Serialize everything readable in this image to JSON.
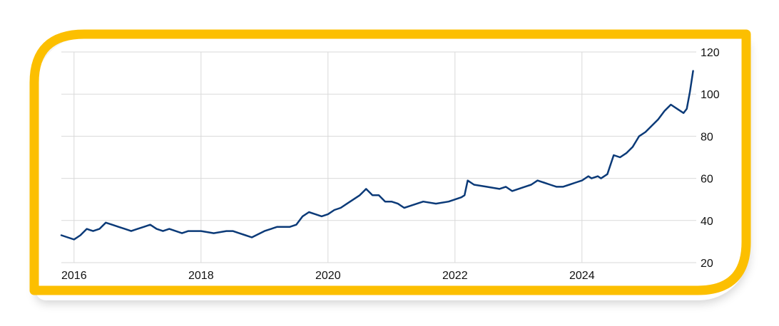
{
  "colors": {
    "frame": "#FCBF00",
    "line": "#0B3A78",
    "grid": "#D9D9D9",
    "text": "#111111",
    "background": "#FFFFFF"
  },
  "chart_data": {
    "type": "line",
    "title": "",
    "xlabel": "",
    "ylabel": "",
    "xlim": [
      2015.8,
      2025.8
    ],
    "ylim": [
      20,
      120
    ],
    "y_axis_side": "right",
    "grid": true,
    "x_ticks": [
      "2016",
      "2018",
      "2020",
      "2022",
      "2024"
    ],
    "y_ticks": [
      "20",
      "40",
      "60",
      "80",
      "100",
      "120"
    ],
    "series": [
      {
        "x": [
          2015.8,
          2015.9,
          2016.0,
          2016.1,
          2016.2,
          2016.3,
          2016.4,
          2016.5,
          2016.6,
          2016.7,
          2016.8,
          2016.9,
          2017.0,
          2017.1,
          2017.2,
          2017.3,
          2017.4,
          2017.5,
          2017.6,
          2017.7,
          2017.8,
          2017.9,
          2018.0,
          2018.2,
          2018.4,
          2018.5,
          2018.6,
          2018.7,
          2018.8,
          2019.0,
          2019.2,
          2019.3,
          2019.4,
          2019.5,
          2019.6,
          2019.7,
          2019.8,
          2019.9,
          2020.0,
          2020.1,
          2020.2,
          2020.3,
          2020.4,
          2020.5,
          2020.6,
          2020.7,
          2020.8,
          2020.9,
          2021.0,
          2021.1,
          2021.2,
          2021.3,
          2021.5,
          2021.7,
          2021.9,
          2022.0,
          2022.1,
          2022.15,
          2022.2,
          2022.3,
          2022.5,
          2022.7,
          2022.8,
          2022.9,
          2023.0,
          2023.1,
          2023.2,
          2023.3,
          2023.4,
          2023.5,
          2023.6,
          2023.7,
          2023.8,
          2023.9,
          2024.0,
          2024.1,
          2024.15,
          2024.25,
          2024.3,
          2024.4,
          2024.5,
          2024.6,
          2024.7,
          2024.8,
          2024.9,
          2025.0,
          2025.1,
          2025.2,
          2025.3,
          2025.4,
          2025.5,
          2025.6,
          2025.65,
          2025.7,
          2025.75
        ],
        "y": [
          33,
          32,
          31,
          33,
          36,
          35,
          36,
          39,
          38,
          37,
          36,
          35,
          36,
          37,
          38,
          36,
          35,
          36,
          35,
          34,
          35,
          35,
          35,
          34,
          35,
          35,
          34,
          33,
          32,
          35,
          37,
          37,
          37,
          38,
          42,
          44,
          43,
          42,
          43,
          45,
          46,
          48,
          50,
          52,
          55,
          52,
          52,
          49,
          49,
          48,
          46,
          47,
          49,
          48,
          49,
          50,
          51,
          52,
          59,
          57,
          56,
          55,
          56,
          54,
          55,
          56,
          57,
          59,
          58,
          57,
          56,
          56,
          57,
          58,
          59,
          61,
          60,
          61,
          60,
          62,
          71,
          70,
          72,
          75,
          80,
          82,
          85,
          88,
          92,
          95,
          93,
          91,
          93,
          101,
          111
        ]
      }
    ]
  }
}
